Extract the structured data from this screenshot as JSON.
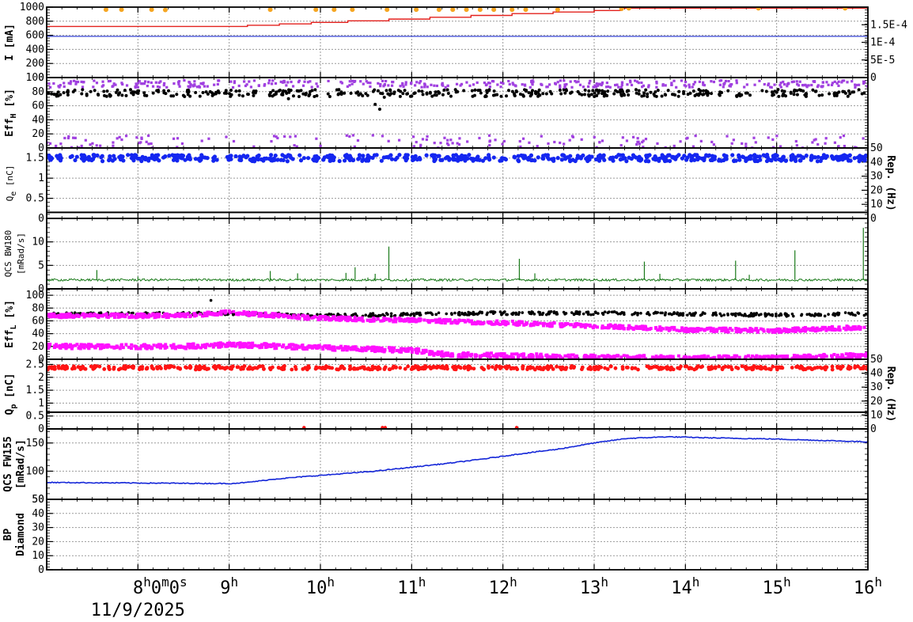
{
  "chart_data": {
    "type": "scatter",
    "x_axis": {
      "range_hours": [
        7.0,
        16.0
      ],
      "ticks": [
        {
          "hour": 8,
          "label": "8",
          "sup": "h",
          "tail": "0",
          "tail_sup": "m",
          "tail2": "0",
          "tail2_sup": "s"
        },
        {
          "hour": 9,
          "label": "9",
          "sup": "h"
        },
        {
          "hour": 10,
          "label": "10",
          "sup": "h"
        },
        {
          "hour": 11,
          "label": "11",
          "sup": "h"
        },
        {
          "hour": 12,
          "label": "12",
          "sup": "h"
        },
        {
          "hour": 13,
          "label": "13",
          "sup": "h"
        },
        {
          "hour": 14,
          "label": "14",
          "sup": "h"
        },
        {
          "hour": 15,
          "label": "15",
          "sup": "h"
        },
        {
          "hour": 16,
          "label": "16",
          "sup": "h"
        }
      ],
      "date_label": "11/9/2025"
    },
    "panels": [
      {
        "id": "current",
        "ylabel": "I [mA]",
        "ylim": [
          0,
          1000
        ],
        "yticks": [
          "0",
          "200",
          "400",
          "600",
          "800",
          "1000"
        ],
        "right_ticks": [
          "0",
          "5E-5",
          "1E-4",
          "1.5E-4"
        ],
        "right_ylim": [
          0,
          0.0002
        ],
        "series": [
          {
            "kind": "step",
            "color": "#e3211d",
            "points": [
              [
                7.0,
                725
              ],
              [
                9.0,
                725
              ],
              [
                9.2,
                742
              ],
              [
                9.55,
                762
              ],
              [
                9.9,
                783
              ],
              [
                10.3,
                805
              ],
              [
                10.75,
                830
              ],
              [
                11.2,
                856
              ],
              [
                11.65,
                882
              ],
              [
                12.1,
                908
              ],
              [
                12.55,
                930
              ],
              [
                13.0,
                952
              ],
              [
                13.3,
                985
              ],
              [
                16.0,
                985
              ]
            ]
          },
          {
            "kind": "line",
            "color": "#1f2fd0",
            "points": [
              [
                7.0,
                585
              ],
              [
                16.0,
                585
              ]
            ]
          },
          {
            "kind": "dots",
            "color": "#f5a623",
            "r": 3,
            "points": [
              [
                7.65,
                965
              ],
              [
                7.82,
                965
              ],
              [
                8.15,
                965
              ],
              [
                8.3,
                960
              ],
              [
                9.45,
                965
              ],
              [
                9.95,
                965
              ],
              [
                10.15,
                965
              ],
              [
                10.35,
                965
              ],
              [
                10.73,
                965
              ],
              [
                11.05,
                965
              ],
              [
                11.3,
                965
              ],
              [
                11.45,
                965
              ],
              [
                11.6,
                965
              ],
              [
                11.75,
                965
              ],
              [
                11.9,
                965
              ],
              [
                12.1,
                965
              ],
              [
                12.25,
                965
              ],
              [
                12.6,
                965
              ],
              [
                13.3,
                978
              ],
              [
                13.38,
                985
              ],
              [
                14.8,
                985
              ],
              [
                15.75,
                985
              ]
            ]
          }
        ]
      },
      {
        "id": "eff_h",
        "ylabel": "Eff",
        "ylabel_sub": "H",
        "ylabel_tail": " [%]",
        "ylim": [
          0,
          100
        ],
        "yticks": [
          "0",
          "20",
          "40",
          "60",
          "80",
          "100"
        ],
        "series": [
          {
            "kind": "noise",
            "color": "#000000",
            "base": 78,
            "amp": 5,
            "count": 420,
            "r": 2,
            "outliers": [
              [
                10.6,
                62
              ],
              [
                10.65,
                55
              ],
              [
                10.7,
                72
              ],
              [
                9.65,
                70
              ]
            ]
          },
          {
            "kind": "noise",
            "color": "#a040e0",
            "base": 91,
            "amp": 5,
            "count": 380,
            "r": 1.6,
            "sq": true
          },
          {
            "kind": "noise",
            "color": "#a040e0",
            "base": 9,
            "amp": 9,
            "count": 260,
            "r": 1.6,
            "sq": true,
            "sparse": true
          }
        ]
      },
      {
        "id": "qe",
        "ylabel": "Q",
        "ylabel_sub": "e",
        "ylabel_tail": " [nC]",
        "ylabel_small": true,
        "ylim": [
          0,
          1.75
        ],
        "yticks": [
          "0",
          "0.5",
          "1",
          "1.5"
        ],
        "right_label": "Rep. (Hz)",
        "right_ticks": [
          "0",
          "10",
          "20",
          "30",
          "40",
          "50"
        ],
        "right_ylim": [
          0,
          50
        ],
        "series": [
          {
            "kind": "noise",
            "color": "#1426f0",
            "base": 1.5,
            "amp": 0.08,
            "count": 600,
            "r": 2.6
          },
          {
            "kind": "line",
            "color": "#000000",
            "points": [
              [
                7.0,
                0.15
              ],
              [
                16.0,
                0.15
              ]
            ],
            "width": 2
          }
        ]
      },
      {
        "id": "qcs_bw180",
        "ylabel": "QCS BW180",
        "ylabel2": "[mRad/s]",
        "ylabel_small": true,
        "ylim": [
          0,
          15
        ],
        "yticks": [
          "0",
          "5",
          "10"
        ],
        "series": [
          {
            "kind": "trace",
            "color": "#1a7a1a",
            "base": 1.9,
            "amp": 0.25,
            "spikes": [
              [
                7.55,
                4.0
              ],
              [
                8.0,
                2.6
              ],
              [
                9.45,
                3.8
              ],
              [
                9.75,
                3.3
              ],
              [
                10.28,
                3.4
              ],
              [
                10.38,
                4.6
              ],
              [
                10.52,
                2.4
              ],
              [
                10.6,
                3.2
              ],
              [
                10.75,
                9.0
              ],
              [
                12.18,
                6.4
              ],
              [
                12.35,
                3.3
              ],
              [
                13.55,
                5.8
              ],
              [
                13.72,
                3.2
              ],
              [
                14.55,
                6.0
              ],
              [
                14.7,
                3.0
              ],
              [
                15.2,
                8.2
              ],
              [
                15.95,
                13.0
              ]
            ]
          }
        ]
      },
      {
        "id": "eff_l",
        "ylabel": "Eff",
        "ylabel_sub": "L",
        "ylabel_tail": " [%]",
        "ylim": [
          0,
          110
        ],
        "yticks": [
          "0",
          "20",
          "40",
          "60",
          "80",
          "100"
        ],
        "series": [
          {
            "kind": "trend",
            "color": "#000000",
            "r": 1.8,
            "count": 520,
            "knots": [
              [
                7.0,
                70
              ],
              [
                8.5,
                71
              ],
              [
                9.0,
                72
              ],
              [
                10.0,
                68
              ],
              [
                11.0,
                70
              ],
              [
                12.0,
                72
              ],
              [
                13.0,
                72
              ],
              [
                14.0,
                71
              ],
              [
                15.0,
                69
              ],
              [
                16.0,
                71
              ]
            ],
            "amp": 2.5,
            "outliers": [
              [
                8.8,
                92
              ]
            ]
          },
          {
            "kind": "trend",
            "color": "#ff10ff",
            "r": 2,
            "sq": true,
            "count": 900,
            "knots": [
              [
                7.0,
                68
              ],
              [
                8.5,
                68
              ],
              [
                9.0,
                73
              ],
              [
                10.0,
                64
              ],
              [
                11.0,
                61
              ],
              [
                12.0,
                57
              ],
              [
                13.0,
                52
              ],
              [
                14.0,
                46
              ],
              [
                15.0,
                45
              ],
              [
                16.0,
                50
              ]
            ],
            "amp": 3
          },
          {
            "kind": "trend",
            "color": "#ff10ff",
            "r": 2,
            "sq": true,
            "count": 900,
            "knots": [
              [
                7.0,
                20
              ],
              [
                8.5,
                20
              ],
              [
                9.0,
                23
              ],
              [
                10.0,
                18
              ],
              [
                11.0,
                14
              ],
              [
                11.4,
                7
              ],
              [
                12.0,
                6
              ],
              [
                13.0,
                3
              ],
              [
                14.0,
                2
              ],
              [
                15.0,
                2
              ],
              [
                16.0,
                6
              ]
            ],
            "amp": 3.5
          }
        ]
      },
      {
        "id": "qp",
        "ylabel": "Q",
        "ylabel_sub": "p",
        "ylabel_tail": " [nC]",
        "ylim": [
          0,
          2.7
        ],
        "yticks": [
          "0",
          "0.5",
          "1",
          "1.5",
          "2",
          "2.5"
        ],
        "right_label": "Rep. (Hz)",
        "right_ticks": [
          "0",
          "10",
          "20",
          "30",
          "40",
          "50"
        ],
        "right_ylim": [
          0,
          50
        ],
        "series": [
          {
            "kind": "noise",
            "color": "#ff1414",
            "base": 2.37,
            "amp": 0.07,
            "count": 520,
            "r": 2.4
          },
          {
            "kind": "line",
            "color": "#000000",
            "points": [
              [
                7.0,
                0.65
              ],
              [
                16.0,
                0.65
              ]
            ],
            "width": 2
          },
          {
            "kind": "dots",
            "color": "#ff1414",
            "r": 2.2,
            "points": [
              [
                9.82,
                0.05
              ],
              [
                10.68,
                0.05
              ],
              [
                10.71,
                0.05
              ],
              [
                12.15,
                0.05
              ]
            ]
          }
        ]
      },
      {
        "id": "qcs_fw155",
        "ylabel": "QCS FW155",
        "ylabel2": "[mRad/s]",
        "ylim": [
          50,
          175
        ],
        "yticks": [
          "50",
          "100",
          "150"
        ],
        "series": [
          {
            "kind": "steptrace",
            "color": "#1426d8",
            "knots": [
              [
                7.0,
                80
              ],
              [
                8.0,
                79
              ],
              [
                9.0,
                78
              ],
              [
                9.2,
                80
              ],
              [
                9.5,
                86
              ],
              [
                9.8,
                90
              ],
              [
                10.2,
                95
              ],
              [
                10.6,
                100
              ],
              [
                11.0,
                107
              ],
              [
                11.4,
                114
              ],
              [
                11.8,
                122
              ],
              [
                12.2,
                131
              ],
              [
                12.6,
                139
              ],
              [
                13.0,
                150
              ],
              [
                13.35,
                158
              ],
              [
                13.8,
                161
              ],
              [
                14.3,
                159
              ],
              [
                15.0,
                157
              ],
              [
                16.0,
                152
              ]
            ]
          }
        ]
      },
      {
        "id": "bp_diamond",
        "ylabel": "BP",
        "ylabel2": "Diamond",
        "ylim": [
          0,
          50
        ],
        "yticks": [
          "0",
          "10",
          "20",
          "30",
          "40",
          "50"
        ],
        "series": []
      }
    ]
  }
}
